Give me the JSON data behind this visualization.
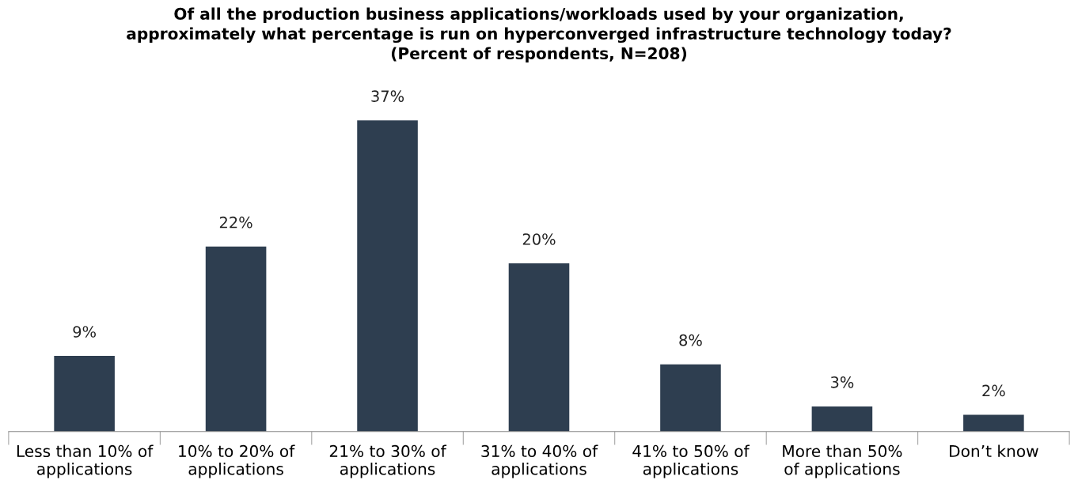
{
  "chart_data": {
    "type": "bar",
    "title": "Of all the production business applications/workloads used by your organization,\napproximately what percentage is run on hyperconverged infrastructure technology today?\n(Percent of respondents, N=208)",
    "categories": [
      "Less than 10% of\napplications",
      "10% to 20% of\napplications",
      "21% to 30% of\napplications",
      "31% to 40% of\napplications",
      "41% to 50% of\napplications",
      "More than 50%\nof applications",
      "Don’t know"
    ],
    "values": [
      9,
      22,
      37,
      20,
      8,
      3,
      2
    ],
    "color": "#2e3e50",
    "value_labels": [
      "9%",
      "22%",
      "37%",
      "20%",
      "8%",
      "3%",
      "2%"
    ],
    "grid": false,
    "legend": false
  }
}
